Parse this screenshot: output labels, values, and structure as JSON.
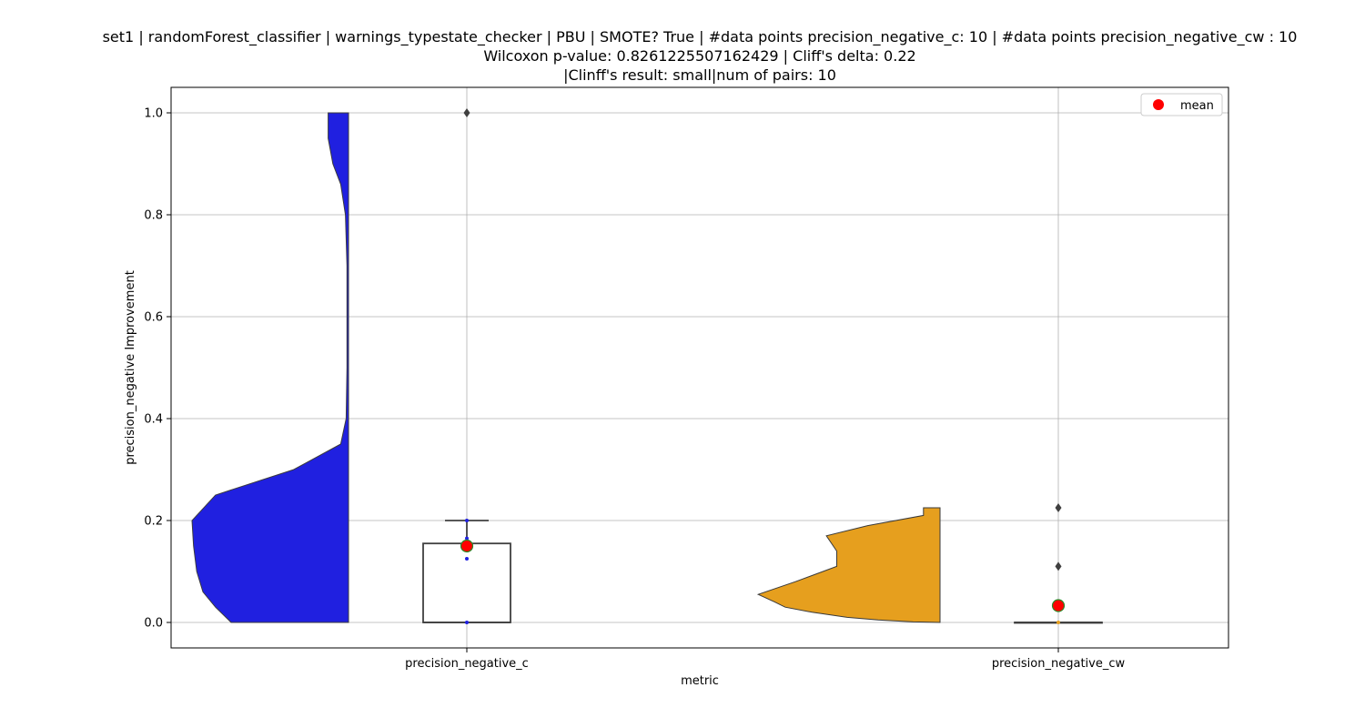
{
  "chart_data": {
    "type": "violin+box",
    "title_lines": [
      "set1 | randomForest_classifier | warnings_typestate_checker | PBU | SMOTE? True | #data points precision_negative_c: 10 | #data points precision_negative_cw : 10",
      "Wilcoxon p-value: 0.8261225507162429 | Cliff's delta: 0.22",
      "|Clinff's result: small|num of pairs: 10"
    ],
    "xlabel": "metric",
    "ylabel": "precision_negative Improvement",
    "ylim": [
      -0.05,
      1.05
    ],
    "yticks": [
      0.0,
      0.2,
      0.4,
      0.6,
      0.8,
      1.0
    ],
    "ytick_labels": [
      "0.0",
      "0.2",
      "0.4",
      "0.6",
      "0.8",
      "1.0"
    ],
    "grid": true,
    "legend": {
      "position": "top-right",
      "entries": [
        {
          "label": "mean",
          "color": "#ff0000"
        }
      ]
    },
    "categories": [
      "precision_negative_c",
      "precision_negative_cw"
    ],
    "series": [
      {
        "category": "precision_negative_c",
        "violin_color": "#2020e0",
        "violin_extent": [
          0.0,
          1.0
        ],
        "density": [
          [
            0.0,
            0.75
          ],
          [
            0.03,
            0.85
          ],
          [
            0.06,
            0.93
          ],
          [
            0.1,
            0.97
          ],
          [
            0.15,
            0.99
          ],
          [
            0.2,
            1.0
          ],
          [
            0.25,
            0.85
          ],
          [
            0.3,
            0.35
          ],
          [
            0.35,
            0.05
          ],
          [
            0.4,
            0.015
          ],
          [
            0.5,
            0.01
          ],
          [
            0.6,
            0.01
          ],
          [
            0.7,
            0.01
          ],
          [
            0.8,
            0.02
          ],
          [
            0.86,
            0.05
          ],
          [
            0.9,
            0.1
          ],
          [
            0.95,
            0.13
          ],
          [
            1.0,
            0.13
          ]
        ],
        "box": {
          "q1": 0.0,
          "median": 0.0,
          "q3": 0.155,
          "whisker_low": 0.0,
          "whisker_high": 0.2
        },
        "outliers": [
          1.0
        ],
        "points": [
          0.0,
          0.125,
          0.15,
          0.165,
          0.2
        ],
        "point_color": "#2020e0",
        "mean": 0.15
      },
      {
        "category": "precision_negative_cw",
        "violin_color": "#e69f1e",
        "violin_extent": [
          0.0,
          0.225
        ],
        "density": [
          [
            0.0,
            0.0
          ],
          [
            0.001,
            0.13
          ],
          [
            0.005,
            0.3
          ],
          [
            0.01,
            0.45
          ],
          [
            0.02,
            0.62
          ],
          [
            0.03,
            0.75
          ],
          [
            0.04,
            0.8
          ],
          [
            0.055,
            0.88
          ],
          [
            0.08,
            0.7
          ],
          [
            0.11,
            0.5
          ],
          [
            0.14,
            0.5
          ],
          [
            0.17,
            0.55
          ],
          [
            0.19,
            0.35
          ],
          [
            0.21,
            0.08
          ],
          [
            0.225,
            0.08
          ]
        ],
        "box": {
          "q1": 0.0,
          "median": 0.0,
          "q3": 0.0,
          "whisker_low": 0.0,
          "whisker_high": 0.0
        },
        "outliers": [
          0.11,
          0.225
        ],
        "points": [
          0.0
        ],
        "point_color": "#e69f1e",
        "mean": 0.033
      }
    ]
  }
}
